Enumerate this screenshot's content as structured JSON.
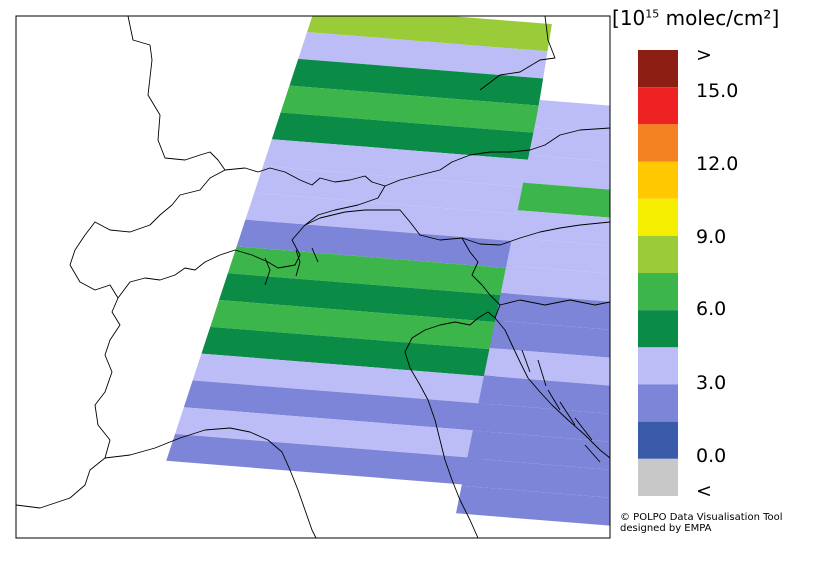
{
  "map": {
    "palette": {
      "below": "#c8c8c8",
      "b0": "#3a5aaa",
      "b1": "#7d85d8",
      "b2": "#bcbdf6",
      "b3": "#0a8c46",
      "b4": "#3cb54a",
      "b5": "#9acc3a",
      "b6": "#f5ee00",
      "b7": "#ffc800",
      "b8": "#f58220",
      "b9": "#ee2222",
      "above": "#8c1e14"
    },
    "bands": [
      "b5",
      "b2",
      "b3",
      "b4",
      "b3",
      "b2",
      "b2",
      "b2",
      "b1",
      "b4",
      "b3",
      "b4",
      "b3",
      "b2",
      "b1",
      "b2",
      "b1"
    ],
    "east_bands": [
      "b2",
      "b2",
      "b2",
      "b4",
      "b2",
      "b2",
      "b2",
      "b1",
      "b1",
      "b2",
      "b1",
      "b1",
      "b1",
      "b1",
      "b1"
    ]
  },
  "legend": {
    "unit_bracket_open": "[",
    "unit_base": "10",
    "unit_exponent": "15",
    "unit_text": " molec/cm²",
    "unit_bracket_close": "]",
    "colors": [
      "#8c1e14",
      "#ee2222",
      "#f58220",
      "#ffc800",
      "#f5ee00",
      "#9acc3a",
      "#3cb54a",
      "#0a8c46",
      "#bcbdf6",
      "#7d85d8",
      "#3a5aaa",
      "#c8c8c8"
    ],
    "tick_labels": [
      ">",
      "15.0",
      "12.0",
      "9.0",
      "6.0",
      "3.0",
      "0.0",
      "<"
    ]
  },
  "credit": {
    "line1": "© POLPO Data Visualisation Tool",
    "line2": "designed by EMPA"
  }
}
